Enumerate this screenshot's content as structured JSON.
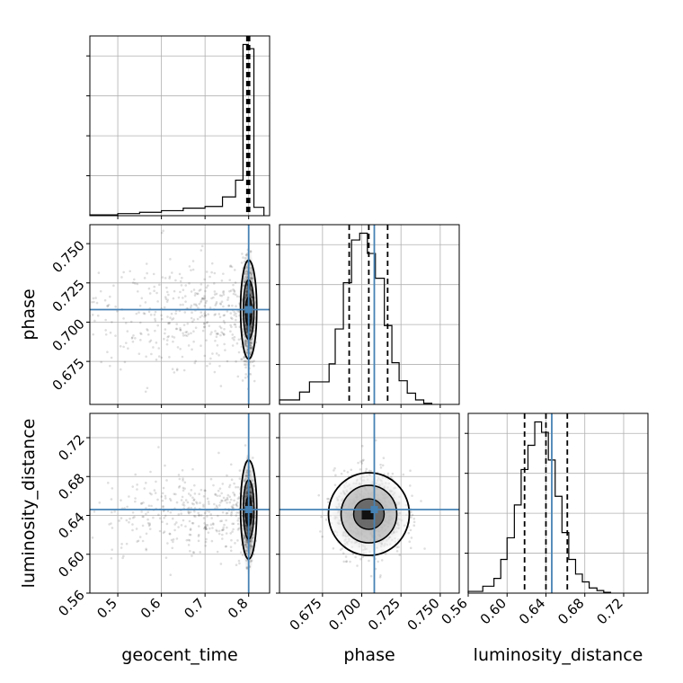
{
  "chart_data": {
    "type": "corner",
    "parameters": [
      "geocent_time",
      "phase",
      "luminosity_distance"
    ],
    "truths": {
      "geocent_time": 0.8,
      "phase": 0.708,
      "luminosity_distance": 0.646
    },
    "truth_color": "#4682b4",
    "grid": true,
    "axes": {
      "geocent_time": {
        "range": [
          0.436,
          0.848
        ],
        "ticks": [
          0.5,
          0.6,
          0.7,
          0.8
        ],
        "tick_labels": [
          "0.5",
          "0.6",
          "0.7",
          "0.8"
        ]
      },
      "phase": {
        "range": [
          0.6476,
          0.7621
        ],
        "ticks": [
          0.675,
          0.7,
          0.725,
          0.75
        ],
        "tick_labels": [
          "0.675",
          "0.700",
          "0.725",
          "0.750"
        ]
      },
      "luminosity_distance": {
        "range": [
          0.56,
          0.745
        ],
        "ticks": [
          0.56,
          0.6,
          0.64,
          0.68,
          0.72
        ],
        "tick_labels": [
          "0.56",
          "0.60",
          "0.64",
          "0.68",
          "0.72"
        ]
      }
    },
    "histograms": {
      "geocent_time": {
        "bins": [
          0.436,
          0.5,
          0.55,
          0.6,
          0.65,
          0.7,
          0.74,
          0.77,
          0.787,
          0.799,
          0.812,
          0.835
        ],
        "counts": [
          0.2,
          0.5,
          0.8,
          1.2,
          1.8,
          2.2,
          4.5,
          8.5,
          41,
          40,
          2
        ]
      },
      "phase": {
        "bins": [
          0.6476,
          0.6604,
          0.6667,
          0.6792,
          0.6831,
          0.6883,
          0.6935,
          0.6987,
          0.7036,
          0.7087,
          0.7144,
          0.7192,
          0.7238,
          0.729,
          0.7343,
          0.7395,
          0.7446
        ],
        "counts": [
          0.4,
          1.1,
          2.0,
          3.6,
          6.7,
          10.8,
          14.6,
          15.2,
          13.4,
          11.2,
          7.0,
          3.7,
          2.1,
          1.0,
          0.4,
          0.1
        ]
      },
      "luminosity_distance": {
        "bins": [
          0.56,
          0.575,
          0.5865,
          0.5935,
          0.6,
          0.6075,
          0.6145,
          0.6215,
          0.6285,
          0.6355,
          0.6425,
          0.6495,
          0.6565,
          0.6635,
          0.6705,
          0.6775,
          0.6845,
          0.6925,
          0.6995,
          0.7065
        ],
        "counts": [
          0.2,
          0.8,
          1.7,
          3.9,
          6.4,
          10.2,
          14.3,
          17.1,
          19.8,
          18.6,
          15.4,
          11.2,
          7.0,
          3.9,
          2.2,
          1.3,
          0.6,
          0.3,
          0.1
        ]
      }
    },
    "quantiles": {
      "geocent_time": [
        0.796,
        0.799,
        0.802
      ],
      "phase": [
        0.692,
        0.7045,
        0.7165
      ],
      "luminosity_distance": [
        0.618,
        0.64,
        0.662
      ]
    },
    "ylabels": {
      "phase": "phase",
      "luminosity_distance": "luminosity_distance"
    },
    "xlabels": {
      "geocent_time": "geocent_time",
      "phase": "phase",
      "luminosity_distance": "luminosity_distance"
    }
  }
}
